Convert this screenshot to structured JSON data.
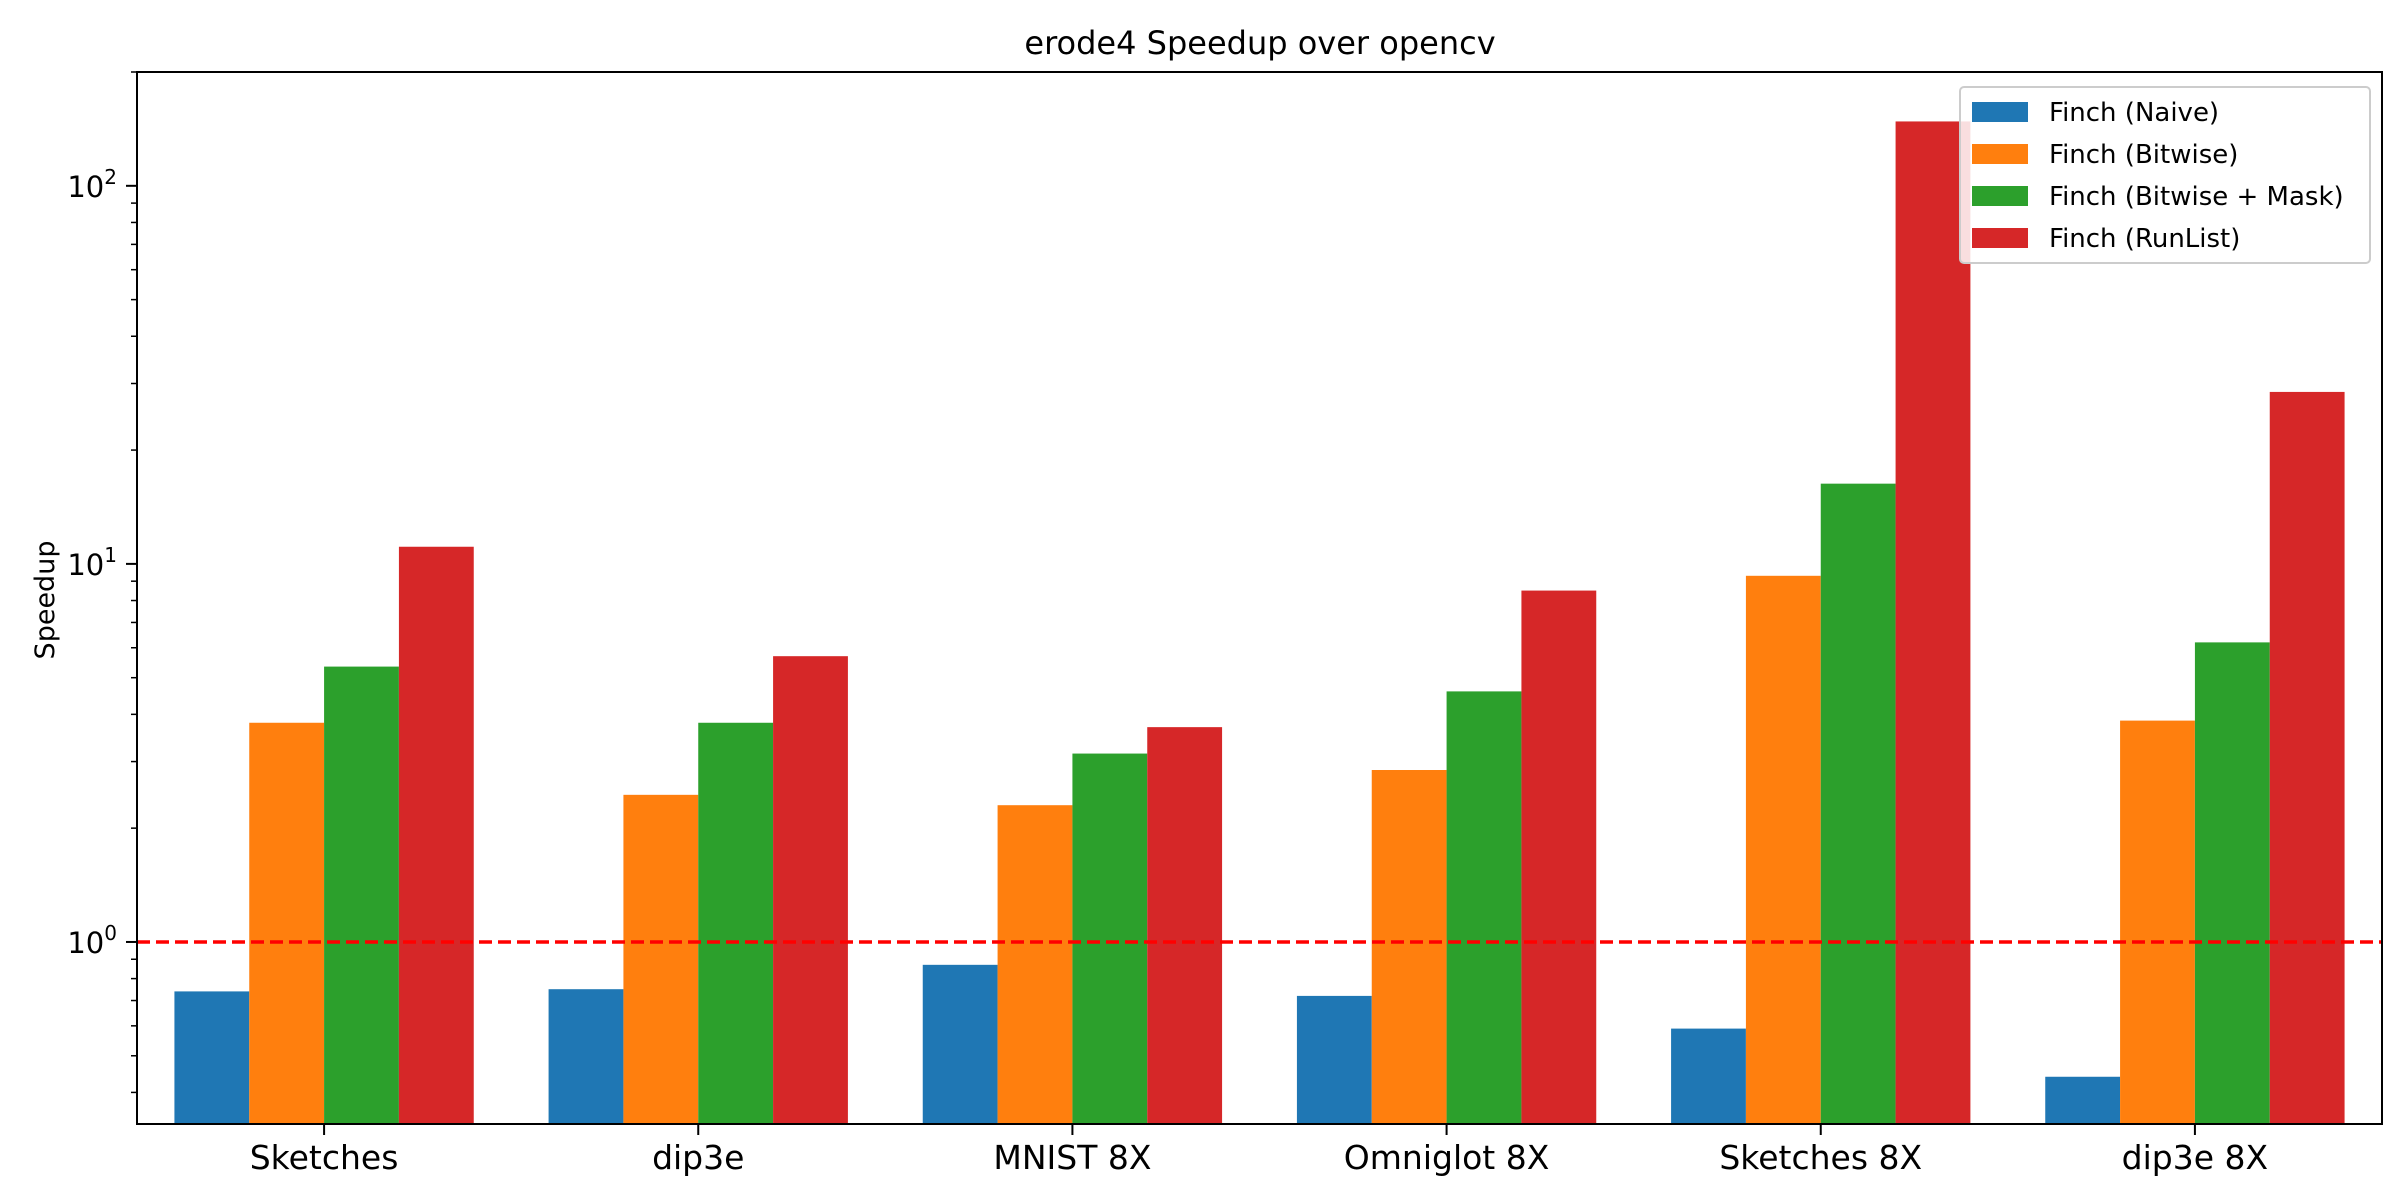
{
  "chart_data": {
    "type": "bar",
    "title": "erode4 Speedup over opencv",
    "xlabel": "",
    "ylabel": "Speedup",
    "yscale": "log",
    "ylim": [
      0.33,
      200
    ],
    "yticks": [
      {
        "value": 1,
        "base": "10",
        "exp": "0"
      },
      {
        "value": 10,
        "base": "10",
        "exp": "1"
      },
      {
        "value": 100,
        "base": "10",
        "exp": "2"
      }
    ],
    "categories": [
      "Sketches",
      "dip3e",
      "MNIST 8X",
      "Omniglot 8X",
      "Sketches 8X",
      "dip3e 8X"
    ],
    "series": [
      {
        "name": "Finch (Naive)",
        "color": "#1f77b4",
        "values": [
          0.74,
          0.75,
          0.87,
          0.72,
          0.59,
          0.44
        ]
      },
      {
        "name": "Finch (Bitwise)",
        "color": "#ff7f0e",
        "values": [
          3.8,
          2.45,
          2.3,
          2.85,
          9.3,
          3.85
        ]
      },
      {
        "name": "Finch (Bitwise + Mask)",
        "color": "#2ca02c",
        "values": [
          5.35,
          3.8,
          3.15,
          4.6,
          16.3,
          6.2
        ]
      },
      {
        "name": "Finch (RunList)",
        "color": "#d62728",
        "values": [
          11.1,
          5.7,
          3.7,
          8.5,
          148,
          28.5
        ]
      }
    ],
    "reference_line": {
      "value": 1,
      "color": "#ff0000",
      "style": "dashed"
    },
    "legend_position": "top-right",
    "grid": false
  }
}
